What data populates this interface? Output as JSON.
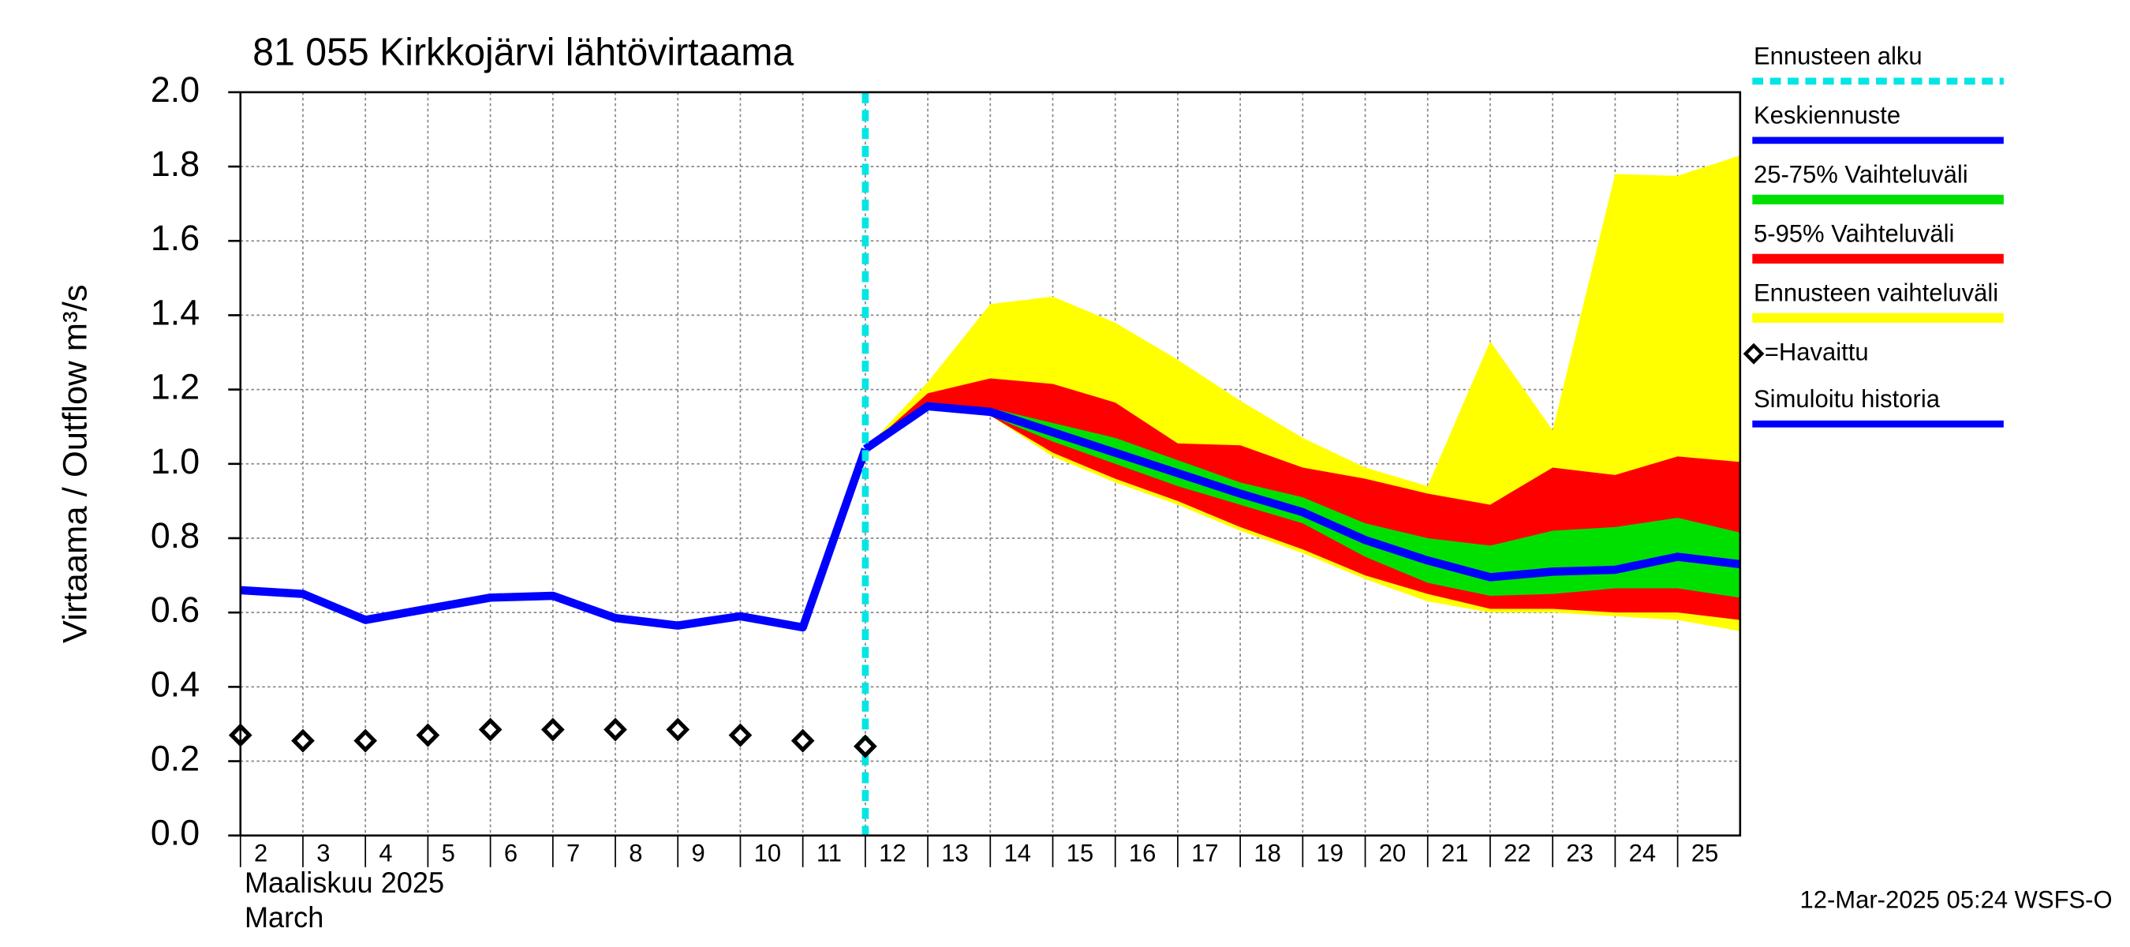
{
  "chart_data": {
    "type": "line",
    "title": "81 055 Kirkkojärvi lähtövirtaama",
    "y_label": "Virtaama / Outflow   m³/s",
    "x_label_lines": [
      "Maaliskuu 2025",
      "March"
    ],
    "footer": "12-Mar-2025 05:24 WSFS-O",
    "xlim": [
      2,
      26
    ],
    "xticks": [
      2,
      3,
      4,
      5,
      6,
      7,
      8,
      9,
      10,
      11,
      12,
      13,
      14,
      15,
      16,
      17,
      18,
      19,
      20,
      21,
      22,
      23,
      24,
      25
    ],
    "ylim": [
      0,
      2
    ],
    "yticks": [
      {
        "value": 0,
        "label": "0.0"
      },
      0.2,
      0.4,
      0.6,
      0.8,
      {
        "value": 1,
        "label": "1.0"
      },
      1.2,
      1.4,
      1.6,
      1.8,
      {
        "value": 2,
        "label": "2.0"
      }
    ],
    "grid": true,
    "series": [
      {
        "name": "Ennusteen alku",
        "kind": "vline",
        "color": "#00e5e5",
        "x": [
          12
        ]
      },
      {
        "name": "Keskiennuste",
        "kind": "line",
        "color": "#0000ff",
        "x": [
          12,
          13,
          14,
          15,
          16,
          17,
          18,
          19,
          20,
          21,
          22,
          23,
          24,
          25,
          26
        ],
        "values": [
          1.04,
          1.155,
          1.14,
          1.085,
          1.03,
          0.975,
          0.92,
          0.87,
          0.795,
          0.74,
          0.695,
          0.71,
          0.715,
          0.75,
          0.73
        ]
      },
      {
        "name": "25-75% Vaihteluväli",
        "kind": "band",
        "color": "#00e000",
        "x": [
          12,
          13,
          14,
          15,
          16,
          17,
          18,
          19,
          20,
          21,
          22,
          23,
          24,
          25,
          26
        ],
        "upper": [
          1.04,
          1.16,
          1.15,
          1.11,
          1.07,
          1.01,
          0.95,
          0.91,
          0.84,
          0.8,
          0.78,
          0.82,
          0.83,
          0.855,
          0.815
        ],
        "lower": [
          1.04,
          1.155,
          1.13,
          1.06,
          1.0,
          0.94,
          0.89,
          0.84,
          0.75,
          0.68,
          0.645,
          0.65,
          0.665,
          0.665,
          0.64
        ]
      },
      {
        "name": "5-95% Vaihteluväli",
        "kind": "band",
        "color": "#ff0000",
        "x": [
          12,
          13,
          14,
          15,
          16,
          17,
          18,
          19,
          20,
          21,
          22,
          23,
          24,
          25,
          26
        ],
        "upper": [
          1.04,
          1.19,
          1.23,
          1.215,
          1.165,
          1.055,
          1.05,
          0.99,
          0.96,
          0.92,
          0.89,
          0.99,
          0.97,
          1.02,
          1.005
        ],
        "lower": [
          1.04,
          1.15,
          1.13,
          1.03,
          0.96,
          0.9,
          0.83,
          0.77,
          0.7,
          0.65,
          0.61,
          0.61,
          0.6,
          0.6,
          0.58
        ]
      },
      {
        "name": "Ennusteen vaihteluväli",
        "kind": "band",
        "color": "#ffff00",
        "x": [
          12,
          13,
          14,
          15,
          16,
          17,
          18,
          19,
          20,
          21,
          22,
          23,
          24,
          25,
          26
        ],
        "upper": [
          1.04,
          1.22,
          1.43,
          1.45,
          1.38,
          1.28,
          1.17,
          1.07,
          0.99,
          0.94,
          1.33,
          1.09,
          1.78,
          1.775,
          1.83
        ],
        "lower": [
          1.04,
          1.15,
          1.13,
          1.02,
          0.95,
          0.89,
          0.82,
          0.76,
          0.69,
          0.63,
          0.6,
          0.6,
          0.59,
          0.58,
          0.55
        ]
      },
      {
        "name": "=Havaittu",
        "kind": "markers",
        "color": "#000000",
        "x": [
          2,
          3,
          4,
          5,
          6,
          7,
          8,
          9,
          10,
          11,
          12
        ],
        "values": [
          0.27,
          0.255,
          0.255,
          0.27,
          0.285,
          0.285,
          0.285,
          0.285,
          0.27,
          0.255,
          0.24
        ]
      },
      {
        "name": "Simuloitu historia",
        "kind": "line",
        "color": "#0000ff",
        "x": [
          2,
          3,
          4,
          5,
          6,
          7,
          8,
          9,
          10,
          11,
          12
        ],
        "values": [
          0.66,
          0.65,
          0.58,
          0.61,
          0.64,
          0.645,
          0.585,
          0.565,
          0.59,
          0.56,
          1.04
        ]
      }
    ]
  }
}
